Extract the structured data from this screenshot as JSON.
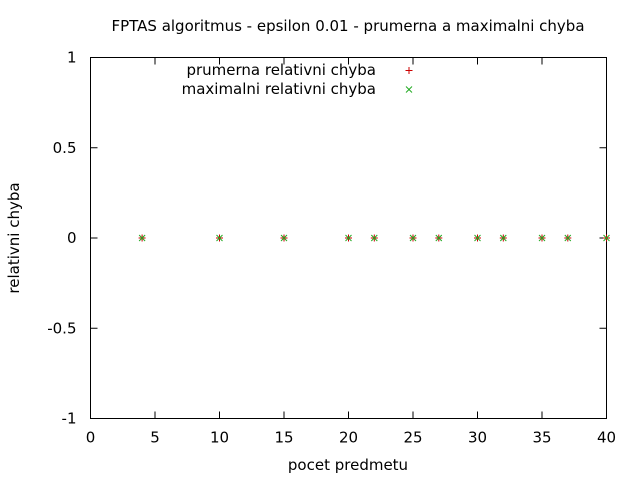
{
  "chart_data": {
    "type": "scatter",
    "title": "FPTAS algoritmus - epsilon 0.01 - prumerna a maximalni chyba",
    "xlabel": "pocet predmetu",
    "ylabel": "relativni chyba",
    "xlim": [
      0,
      40
    ],
    "ylim": [
      -1,
      1
    ],
    "xticks": [
      "0",
      "5",
      "10",
      "15",
      "20",
      "25",
      "30",
      "35",
      "40"
    ],
    "yticks": [
      "1",
      "0.5",
      "0",
      "-0.5",
      "-1"
    ],
    "grid": false,
    "legend_position": "top-right",
    "series": [
      {
        "name": "prumerna relativni chyba",
        "marker": "plus",
        "color": "#cc0000",
        "x": [
          4,
          10,
          15,
          20,
          22,
          25,
          27,
          30,
          32,
          35,
          37,
          40
        ],
        "y": [
          0,
          0,
          0,
          0,
          0,
          0,
          0,
          0,
          0,
          0,
          0,
          0
        ]
      },
      {
        "name": "maximalni relativni chyba",
        "marker": "cross",
        "color": "#22aa22",
        "x": [
          4,
          10,
          15,
          20,
          22,
          25,
          27,
          30,
          32,
          35,
          37,
          40
        ],
        "y": [
          0,
          0,
          0,
          0,
          0,
          0,
          0,
          0,
          0,
          0,
          0,
          0
        ]
      }
    ]
  }
}
